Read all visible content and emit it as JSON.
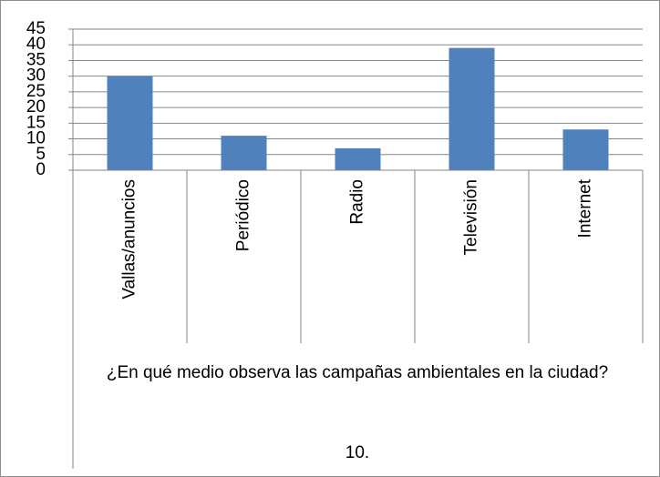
{
  "chart_data": {
    "type": "bar",
    "categories": [
      "Vallas/anuncios",
      "Periódico",
      "Radio",
      "Televisión",
      "Internet"
    ],
    "values": [
      30,
      11,
      7,
      39,
      13
    ],
    "color": "#4f81bd",
    "ylim": [
      0,
      45
    ],
    "yticks": [
      0,
      5,
      10,
      15,
      20,
      25,
      30,
      35,
      40,
      45
    ],
    "grid": true,
    "x_axis_label": "¿En qué medio observa las campañas ambientales en la ciudad?",
    "x_group_label": "10."
  }
}
